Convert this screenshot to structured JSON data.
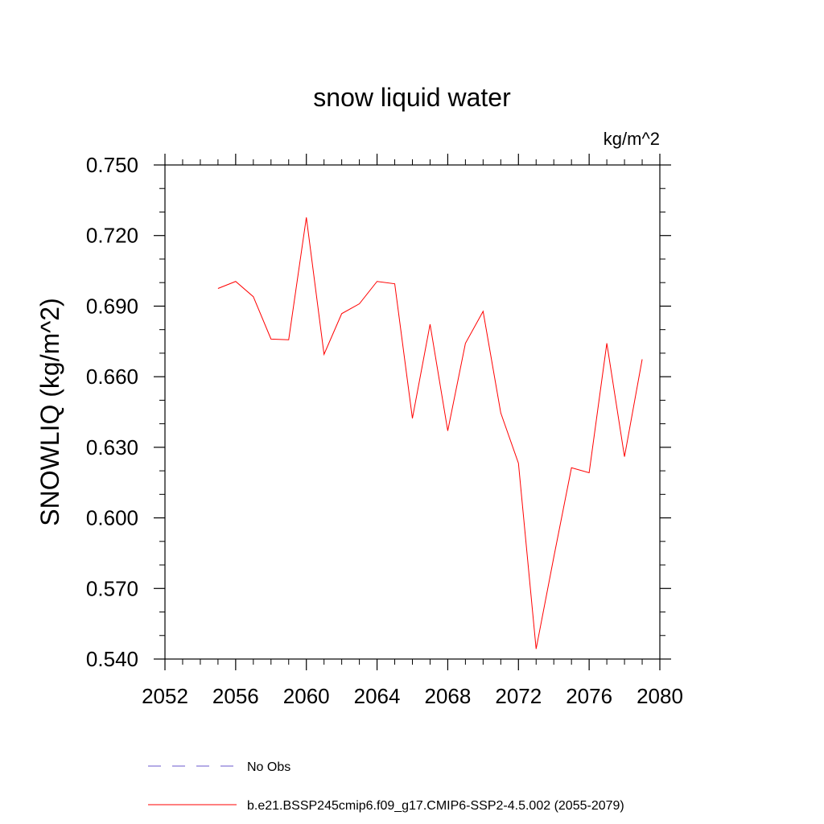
{
  "chart_data": {
    "type": "line",
    "title": "snow liquid water",
    "units_label": "kg/m^2",
    "xlabel": "",
    "ylabel": "SNOWLIQ  (kg/m^2)",
    "xlim": [
      2052,
      2080
    ],
    "ylim": [
      0.54,
      0.75
    ],
    "xticks": [
      2052,
      2056,
      2060,
      2064,
      2068,
      2072,
      2076,
      2080
    ],
    "xtick_labels": [
      "2052",
      "2056",
      "2060",
      "2064",
      "2068",
      "2072",
      "2076",
      "2080"
    ],
    "yticks": [
      0.54,
      0.57,
      0.6,
      0.63,
      0.66,
      0.69,
      0.72,
      0.75
    ],
    "ytick_labels": [
      "0.540",
      "0.570",
      "0.600",
      "0.630",
      "0.660",
      "0.690",
      "0.720",
      "0.750"
    ],
    "grid": false,
    "legend_position": "bottom",
    "legend": [
      {
        "label": "No Obs",
        "color": "#6a5acd",
        "style": "dashed"
      },
      {
        "label": "b.e21.BSSP245cmip6.f09_g17.CMIP6-SSP2-4.5.002 (2055-2079)",
        "color": "#ff0000",
        "style": "solid"
      }
    ],
    "series": [
      {
        "name": "b.e21.BSSP245cmip6.f09_g17.CMIP6-SSP2-4.5.002 (2055-2079)",
        "color": "#ff0000",
        "x": [
          2055,
          2056,
          2057,
          2058,
          2059,
          2060,
          2061,
          2062,
          2063,
          2064,
          2065,
          2066,
          2067,
          2068,
          2069,
          2070,
          2071,
          2072,
          2073,
          2074,
          2075,
          2076,
          2077,
          2078,
          2079
        ],
        "y": [
          0.6975,
          0.7005,
          0.694,
          0.676,
          0.6757,
          0.7277,
          0.6695,
          0.6868,
          0.691,
          0.7005,
          0.6995,
          0.6423,
          0.6823,
          0.637,
          0.6742,
          0.6878,
          0.6446,
          0.6232,
          0.5443,
          0.5833,
          0.6213,
          0.6192,
          0.6742,
          0.626,
          0.6674
        ]
      }
    ]
  }
}
